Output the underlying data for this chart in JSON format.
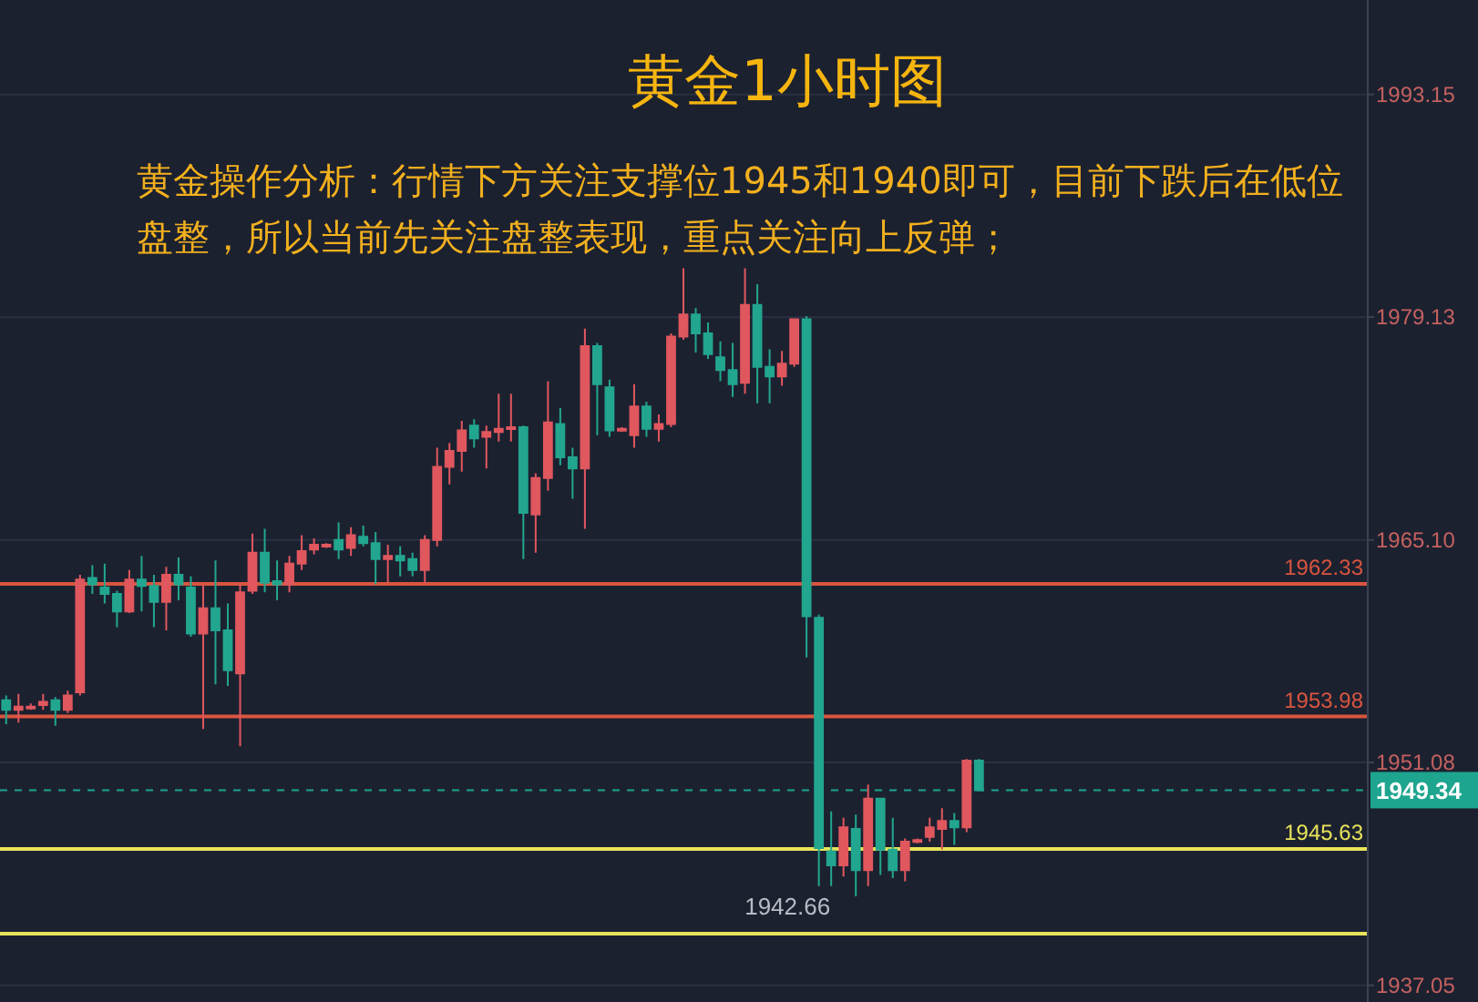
{
  "chart_data": {
    "type": "candlestick",
    "title": "黄金1小时图",
    "subtitle": "黄金操作分析：行情下方关注支撑位1945和1940即可，目前下跌后在低位盘整，所以当前先关注盘整表现，重点关注向上反弹；",
    "categories": [
      null,
      null,
      null,
      null,
      null,
      null,
      null,
      null,
      null,
      null,
      null,
      null,
      null,
      null,
      null,
      null,
      null,
      null,
      null,
      null,
      null,
      null,
      null,
      null,
      null,
      null,
      null,
      null,
      null,
      null,
      null,
      null,
      null,
      null,
      null,
      null,
      null,
      null,
      null,
      null,
      null,
      null,
      null,
      null,
      null,
      null,
      null,
      null,
      null,
      null,
      null,
      null,
      null,
      null,
      null,
      null,
      null,
      null,
      null,
      null,
      null,
      null,
      null,
      null,
      null,
      null,
      null,
      null,
      null,
      null,
      null,
      null,
      null,
      null,
      null,
      null,
      null,
      null,
      null,
      null,
      null,
      null,
      null,
      null,
      null,
      null,
      null,
      null,
      null,
      null,
      null,
      null,
      null,
      null,
      null,
      null,
      null,
      null,
      null,
      null,
      null,
      null,
      null,
      null,
      null,
      null,
      null,
      null,
      null,
      null,
      null
    ],
    "ohlc": [
      [
        1955.0,
        1955.3,
        1953.5,
        1954.4
      ],
      [
        1954.4,
        1955.4,
        1953.6,
        1954.6
      ],
      [
        1954.5,
        1954.8,
        1954.4,
        1954.6
      ],
      [
        1954.7,
        1955.4,
        1954.4,
        1954.9
      ],
      [
        1955.0,
        1955.2,
        1953.4,
        1954.4
      ],
      [
        1954.4,
        1955.6,
        1954.2,
        1955.3
      ],
      [
        1955.5,
        1962.9,
        1955.3,
        1962.6
      ],
      [
        1962.7,
        1963.5,
        1961.7,
        1962.3
      ],
      [
        1962.1,
        1963.6,
        1961.1,
        1961.7
      ],
      [
        1961.7,
        1961.9,
        1959.6,
        1960.6
      ],
      [
        1960.6,
        1963.2,
        1960.5,
        1962.6
      ],
      [
        1962.6,
        1964.1,
        1960.6,
        1962.2
      ],
      [
        1962.2,
        1962.9,
        1959.6,
        1961.2
      ],
      [
        1961.2,
        1963.4,
        1959.4,
        1962.9
      ],
      [
        1962.9,
        1964.0,
        1961.3,
        1962.3
      ],
      [
        1962.1,
        1962.8,
        1959.0,
        1959.2
      ],
      [
        1959.2,
        1962.3,
        1953.2,
        1960.8
      ],
      [
        1960.8,
        1963.8,
        1956.0,
        1959.4
      ],
      [
        1959.4,
        1961.1,
        1955.9,
        1956.9
      ],
      [
        1956.7,
        1962.4,
        1952.1,
        1961.8
      ],
      [
        1961.9,
        1965.5,
        1961.7,
        1964.3
      ],
      [
        1964.3,
        1965.8,
        1961.8,
        1962.4
      ],
      [
        1962.5,
        1963.8,
        1961.3,
        1962.3
      ],
      [
        1962.3,
        1964.1,
        1961.8,
        1963.6
      ],
      [
        1963.6,
        1965.4,
        1963.2,
        1964.4
      ],
      [
        1964.5,
        1965.2,
        1964.2,
        1964.8
      ],
      [
        1964.7,
        1964.9,
        1964.6,
        1964.8
      ],
      [
        1965.1,
        1966.2,
        1963.9,
        1964.5
      ],
      [
        1964.6,
        1965.9,
        1964.1,
        1965.4
      ],
      [
        1965.3,
        1966.0,
        1964.7,
        1964.9
      ],
      [
        1964.9,
        1965.6,
        1962.3,
        1963.9
      ],
      [
        1963.9,
        1964.8,
        1962.4,
        1964.1
      ],
      [
        1964.1,
        1964.7,
        1962.8,
        1963.8
      ],
      [
        1963.9,
        1964.3,
        1962.8,
        1963.2
      ],
      [
        1963.2,
        1965.4,
        1962.4,
        1965.1
      ],
      [
        1965.1,
        1970.9,
        1964.7,
        1969.7
      ],
      [
        1969.7,
        1971.2,
        1968.6,
        1970.7
      ],
      [
        1970.7,
        1972.6,
        1969.4,
        1972.0
      ],
      [
        1972.3,
        1972.7,
        1970.9,
        1971.5
      ],
      [
        1971.6,
        1972.3,
        1969.6,
        1971.9
      ],
      [
        1971.9,
        1974.3,
        1971.3,
        1972.1
      ],
      [
        1972.1,
        1974.3,
        1971.3,
        1972.2
      ],
      [
        1972.2,
        1972.3,
        1963.9,
        1966.8
      ],
      [
        1966.7,
        1969.3,
        1964.3,
        1969.0
      ],
      [
        1969.0,
        1975.1,
        1968.2,
        1972.5
      ],
      [
        1972.4,
        1973.4,
        1969.8,
        1970.3
      ],
      [
        1970.3,
        1970.9,
        1967.7,
        1969.6
      ],
      [
        1969.6,
        1978.4,
        1965.8,
        1977.3
      ],
      [
        1977.3,
        1977.5,
        1971.7,
        1974.9
      ],
      [
        1974.7,
        1975.2,
        1971.6,
        1972.0
      ],
      [
        1972.0,
        1972.2,
        1971.9,
        1972.1
      ],
      [
        1971.7,
        1974.9,
        1970.9,
        1973.5
      ],
      [
        1973.5,
        1973.8,
        1971.6,
        1972.1
      ],
      [
        1972.1,
        1973.0,
        1971.3,
        1972.4
      ],
      [
        1972.4,
        1978.1,
        1972.2,
        1977.9
      ],
      [
        1977.9,
        1982.2,
        1977.7,
        1979.3
      ],
      [
        1979.3,
        1979.7,
        1976.9,
        1978.1
      ],
      [
        1978.1,
        1978.8,
        1976.5,
        1976.8
      ],
      [
        1976.6,
        1977.6,
        1975.1,
        1975.8
      ],
      [
        1975.8,
        1977.5,
        1974.1,
        1974.9
      ],
      [
        1975.0,
        1982.2,
        1974.3,
        1979.9
      ],
      [
        1979.9,
        1981.2,
        1973.7,
        1976.0
      ],
      [
        1976.0,
        1977.1,
        1973.7,
        1975.4
      ],
      [
        1975.4,
        1977.0,
        1974.8,
        1976.2
      ],
      [
        1976.2,
        1979.0,
        1976.0,
        1979.0
      ],
      [
        1979.0,
        1979.2,
        1957.7,
        1960.3
      ],
      [
        1960.2,
        1960.4,
        1943.3,
        1945.7
      ],
      [
        1945.5,
        1948.0,
        1943.3,
        1944.6
      ],
      [
        1944.6,
        1947.6,
        1943.9,
        1947.0
      ],
      [
        1946.9,
        1947.8,
        1942.66,
        1944.3
      ],
      [
        1944.3,
        1949.7,
        1943.3,
        1948.8
      ],
      [
        1948.8,
        1948.8,
        1944.0,
        1945.6
      ],
      [
        1945.6,
        1947.6,
        1943.8,
        1944.3
      ],
      [
        1944.3,
        1946.3,
        1943.6,
        1946.1
      ],
      [
        1946.1,
        1946.3,
        1946.0,
        1946.2
      ],
      [
        1946.4,
        1947.6,
        1946.1,
        1947.0
      ],
      [
        1946.9,
        1948.2,
        1945.6,
        1947.4
      ],
      [
        1947.4,
        1947.9,
        1945.9,
        1947.0
      ],
      [
        1947.0,
        1951.3,
        1946.7,
        1951.2
      ],
      [
        1951.2,
        1951.3,
        1949.34,
        1949.34
      ],
      null,
      null,
      null,
      null,
      null,
      null,
      null,
      null,
      null,
      null,
      null,
      null,
      null,
      null,
      null,
      null,
      null,
      null,
      null,
      null,
      null,
      null,
      null,
      null,
      null,
      null,
      null,
      null,
      null,
      null,
      null
    ],
    "colors": [
      "#22a68f",
      "#e0575e",
      "#e0575e",
      "#e0575e",
      "#22a68f",
      "#e0575e",
      "#e0575e",
      "#22a68f",
      "#22a68f",
      "#22a68f",
      "#e0575e",
      "#22a68f",
      "#22a68f",
      "#e0575e",
      "#22a68f",
      "#22a68f",
      "#e0575e",
      "#22a68f",
      "#22a68f",
      "#e0575e",
      "#e0575e",
      "#22a68f",
      "#22a68f",
      "#e0575e",
      "#e0575e",
      "#e0575e",
      "#e0575e",
      "#22a68f",
      "#e0575e",
      "#22a68f",
      "#22a68f",
      "#e0575e",
      "#22a68f",
      "#22a68f",
      "#e0575e",
      "#e0575e",
      "#e0575e",
      "#e0575e",
      "#22a68f",
      "#e0575e",
      "#e0575e",
      "#e0575e",
      "#22a68f",
      "#e0575e",
      "#e0575e",
      "#22a68f",
      "#22a68f",
      "#e0575e",
      "#22a68f",
      "#22a68f",
      "#e0575e",
      "#e0575e",
      "#22a68f",
      "#e0575e",
      "#e0575e",
      "#e0575e",
      "#22a68f",
      "#22a68f",
      "#22a68f",
      "#22a68f",
      "#e0575e",
      "#22a68f",
      "#22a68f",
      "#e0575e",
      "#e0575e",
      "#22a68f",
      "#22a68f",
      "#22a68f",
      "#e0575e",
      "#22a68f",
      "#e0575e",
      "#22a68f",
      "#22a68f",
      "#e0575e",
      "#e0575e",
      "#e0575e",
      "#e0575e",
      "#22a68f",
      "#e0575e",
      "#22a68f",
      null,
      null,
      null,
      null,
      null,
      null,
      null,
      null,
      null,
      null,
      null,
      null,
      null,
      null,
      null,
      null,
      null,
      null,
      null,
      null,
      null,
      null,
      null,
      null,
      null,
      null,
      null,
      null,
      null,
      null,
      null
    ],
    "ylim": [
      1936.0,
      1999.1
    ],
    "yticks": [
      1993.15,
      1979.13,
      {
        "value": 1965.1,
        "label": "1965.10"
      },
      1951.08,
      1937.05
    ],
    "tick_labels": "y",
    "grid": "y",
    "ref_lines": [
      {
        "axis": "y",
        "value": 1962.33,
        "label": "1962.33",
        "color": "#d9553f"
      },
      {
        "axis": "y",
        "value": 1953.98,
        "label": "1953.98",
        "color": "#d9553f"
      },
      {
        "axis": "y",
        "value": 1945.63,
        "label": "1945.63",
        "color": "#e8e35a"
      },
      {
        "axis": "y",
        "value": 1940.3,
        "color": "#e8e35a"
      },
      {
        "axis": "y",
        "value": 1949.34,
        "label": "1949.34",
        "color": "#1ea58f",
        "line_style": "dashed"
      }
    ],
    "annotations": [
      "1942.66"
    ]
  }
}
